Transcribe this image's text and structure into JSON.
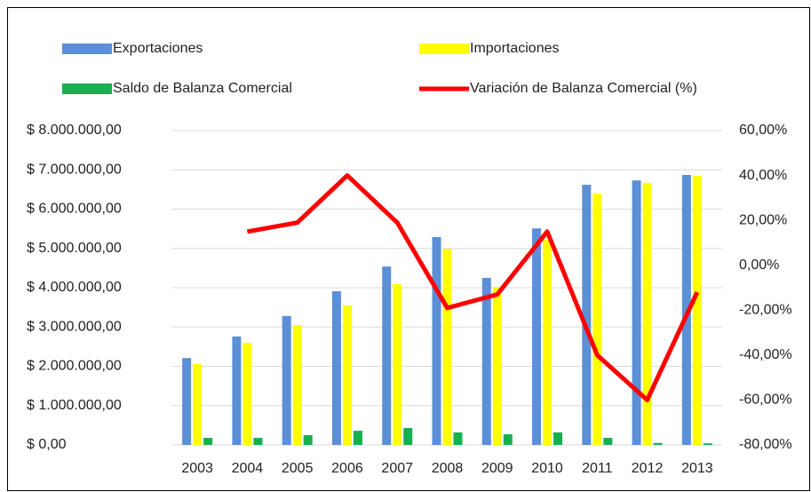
{
  "chart_data": {
    "type": "bar",
    "categories": [
      "2003",
      "2004",
      "2005",
      "2006",
      "2007",
      "2008",
      "2009",
      "2010",
      "2011",
      "2012",
      "2013"
    ],
    "series": [
      {
        "name": "Exportaciones",
        "type": "bar",
        "color": "#5b8fd6",
        "values": [
          2210000,
          2760000,
          3280000,
          3910000,
          4540000,
          5290000,
          4250000,
          5510000,
          6620000,
          6730000,
          6870000
        ]
      },
      {
        "name": "Importaciones",
        "type": "bar",
        "color": "#ffff00",
        "values": [
          2060000,
          2600000,
          3050000,
          3550000,
          4090000,
          4990000,
          4020000,
          5220000,
          6400000,
          6670000,
          6850000
        ]
      },
      {
        "name": "Saldo de Balanza Comercial",
        "type": "bar",
        "color": "#16b050",
        "values": [
          180000,
          180000,
          250000,
          360000,
          430000,
          320000,
          270000,
          320000,
          180000,
          50000,
          40000
        ]
      },
      {
        "name": "Variación de Balanza Comercial (%)",
        "type": "line",
        "axis": "y2",
        "color": "#ff0000",
        "values": [
          null,
          15,
          19,
          40,
          19,
          -19,
          -13,
          15,
          -40,
          -60,
          -12
        ]
      }
    ],
    "ylim": [
      0,
      8000000
    ],
    "yticks": [
      {
        "value": 0,
        "label": "$ 0,00"
      },
      {
        "value": 1000000,
        "label": "$ 1.000.000,00"
      },
      {
        "value": 2000000,
        "label": "$ 2.000.000,00"
      },
      {
        "value": 3000000,
        "label": "$ 3.000.000,00"
      },
      {
        "value": 4000000,
        "label": "$ 4.000.000,00"
      },
      {
        "value": 5000000,
        "label": "$ 5.000.000,00"
      },
      {
        "value": 6000000,
        "label": "$ 6.000.000,00"
      },
      {
        "value": 7000000,
        "label": "$ 7.000.000,00"
      },
      {
        "value": 8000000,
        "label": "$ 8.000.000,00"
      }
    ],
    "y2lim": [
      -80,
      60
    ],
    "y2ticks": [
      {
        "value": -80,
        "label": "-80,00%"
      },
      {
        "value": -60,
        "label": "-60,00%"
      },
      {
        "value": -40,
        "label": "-40,00%"
      },
      {
        "value": -20,
        "label": "-20,00%"
      },
      {
        "value": 0,
        "label": "0,00%"
      },
      {
        "value": 20,
        "label": "20,00%"
      },
      {
        "value": 40,
        "label": "40,00%"
      },
      {
        "value": 60,
        "label": "60,00%"
      }
    ],
    "grid": true,
    "legend": "top"
  }
}
